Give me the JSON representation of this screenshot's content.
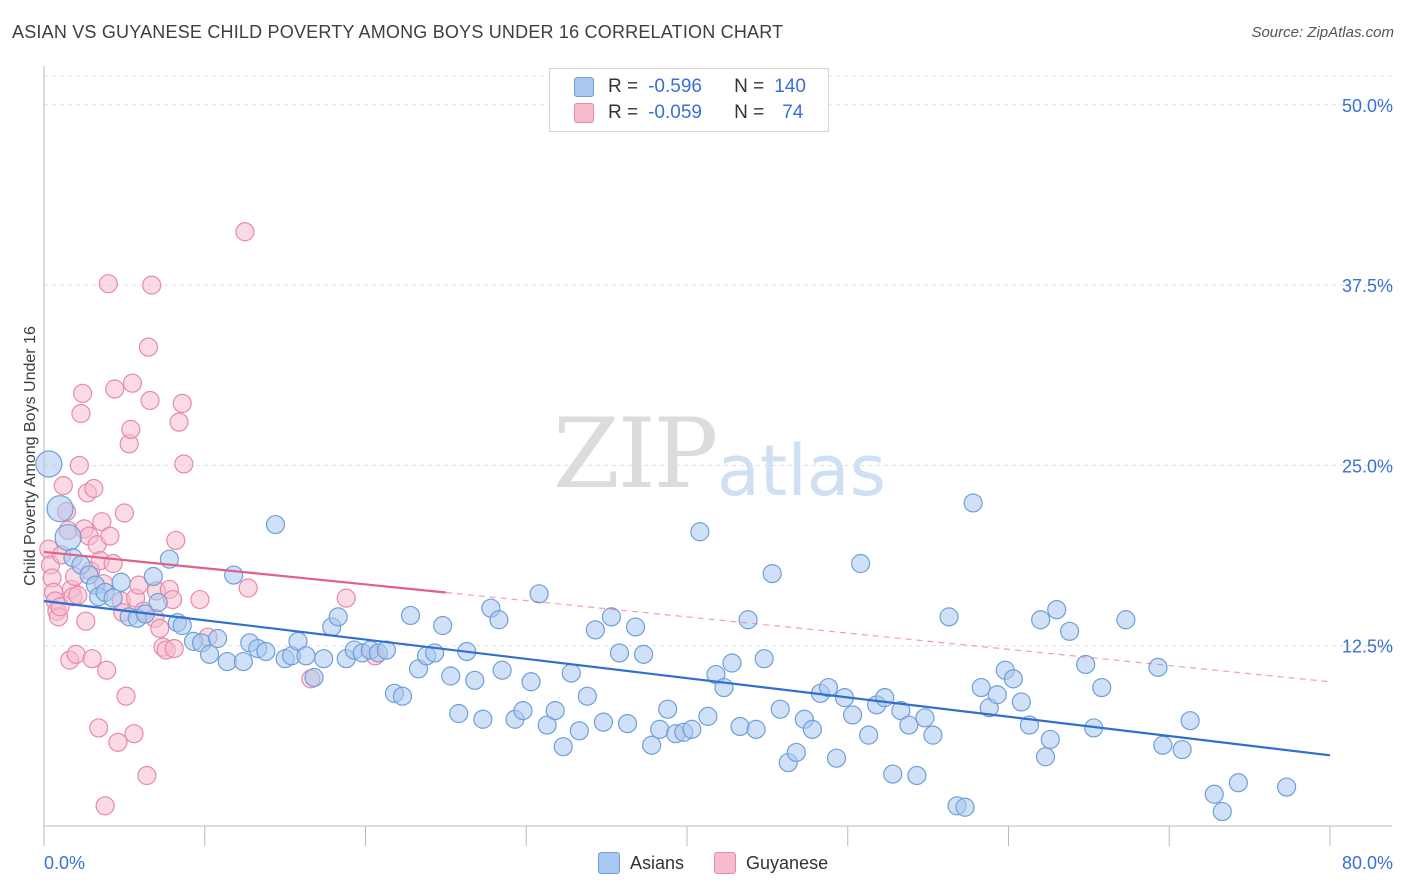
{
  "header": {
    "title": "ASIAN VS GUYANESE CHILD POVERTY AMONG BOYS UNDER 16 CORRELATION CHART",
    "source": "Source: ZipAtlas.com"
  },
  "legend": {
    "rows": [
      {
        "r_label": "R =",
        "r_value": "-0.596",
        "n_label": "N =",
        "n_value": "140"
      },
      {
        "r_label": "R =",
        "r_value": "-0.059",
        "n_label": "N =",
        "n_value": "74"
      }
    ],
    "bottom": [
      "Asians",
      "Guyanese"
    ]
  },
  "watermark": {
    "zip": "ZIP",
    "atlas": "atlas"
  },
  "colors": {
    "asian_fill": "#a9c8f0",
    "asian_stroke": "#6f9fd8",
    "asian_line": "#2f6fd0",
    "guyanese_fill": "#f6bccd",
    "guyanese_stroke": "#e88aa8",
    "guyanese_line": "#e0608a",
    "axis_text": "#3a6fd8",
    "grid": "#dedede"
  },
  "chart_data": {
    "type": "scatter",
    "title": "ASIAN VS GUYANESE CHILD POVERTY AMONG BOYS UNDER 16 CORRELATION CHART",
    "xlabel": "",
    "ylabel": "Child Poverty Among Boys Under 16",
    "xlim": [
      0,
      80
    ],
    "ylim": [
      0,
      52
    ],
    "x_tick_labels": [
      "0.0%",
      "80.0%"
    ],
    "y_tick_labels": [
      "12.5%",
      "25.0%",
      "37.5%",
      "50.0%"
    ],
    "y_ticks": [
      12.5,
      25.0,
      37.5,
      50.0
    ],
    "grid": true,
    "legend_position": "top-center",
    "series": [
      {
        "name": "Asians",
        "r": -0.596,
        "n": 140,
        "trend": {
          "x0": 0,
          "y0": 15.6,
          "x1": 80,
          "y1": 4.9,
          "solid_until": 80
        },
        "points": [
          [
            0.3,
            25.1
          ],
          [
            1.0,
            22.0
          ],
          [
            1.5,
            20.0
          ],
          [
            1.8,
            18.6
          ],
          [
            2.3,
            18.1
          ],
          [
            2.8,
            17.4
          ],
          [
            3.2,
            16.7
          ],
          [
            3.4,
            15.9
          ],
          [
            3.8,
            16.2
          ],
          [
            4.3,
            15.8
          ],
          [
            4.8,
            16.9
          ],
          [
            5.3,
            14.5
          ],
          [
            5.8,
            14.4
          ],
          [
            6.3,
            14.7
          ],
          [
            6.8,
            17.3
          ],
          [
            7.1,
            15.5
          ],
          [
            7.8,
            18.5
          ],
          [
            8.3,
            14.1
          ],
          [
            8.6,
            13.9
          ],
          [
            9.3,
            12.8
          ],
          [
            9.8,
            12.7
          ],
          [
            10.3,
            11.9
          ],
          [
            10.8,
            13.0
          ],
          [
            11.4,
            11.4
          ],
          [
            11.8,
            17.4
          ],
          [
            12.4,
            11.4
          ],
          [
            12.8,
            12.7
          ],
          [
            13.3,
            12.3
          ],
          [
            13.8,
            12.1
          ],
          [
            14.4,
            20.9
          ],
          [
            15.0,
            11.6
          ],
          [
            15.4,
            11.8
          ],
          [
            15.8,
            12.8
          ],
          [
            16.3,
            11.8
          ],
          [
            16.8,
            10.3
          ],
          [
            17.4,
            11.6
          ],
          [
            17.9,
            13.8
          ],
          [
            18.3,
            14.5
          ],
          [
            18.8,
            11.6
          ],
          [
            19.3,
            12.2
          ],
          [
            19.8,
            12.0
          ],
          [
            20.3,
            12.2
          ],
          [
            20.8,
            12.0
          ],
          [
            21.3,
            12.2
          ],
          [
            21.8,
            9.2
          ],
          [
            22.3,
            9.0
          ],
          [
            22.8,
            14.6
          ],
          [
            23.3,
            10.9
          ],
          [
            23.8,
            11.8
          ],
          [
            24.3,
            12.0
          ],
          [
            24.8,
            13.9
          ],
          [
            25.3,
            10.4
          ],
          [
            25.8,
            7.8
          ],
          [
            26.3,
            12.1
          ],
          [
            26.8,
            10.1
          ],
          [
            27.3,
            7.4
          ],
          [
            27.8,
            15.1
          ],
          [
            28.3,
            14.3
          ],
          [
            28.5,
            10.8
          ],
          [
            29.3,
            7.4
          ],
          [
            29.8,
            8.0
          ],
          [
            30.3,
            10.0
          ],
          [
            30.8,
            16.1
          ],
          [
            31.3,
            7.0
          ],
          [
            31.8,
            8.0
          ],
          [
            32.3,
            5.5
          ],
          [
            32.8,
            10.6
          ],
          [
            33.3,
            6.6
          ],
          [
            33.8,
            9.0
          ],
          [
            34.3,
            13.6
          ],
          [
            34.8,
            7.2
          ],
          [
            35.3,
            14.5
          ],
          [
            35.8,
            12.0
          ],
          [
            36.3,
            7.1
          ],
          [
            36.8,
            13.8
          ],
          [
            37.3,
            11.9
          ],
          [
            37.8,
            5.6
          ],
          [
            38.3,
            6.7
          ],
          [
            38.8,
            8.1
          ],
          [
            39.3,
            6.4
          ],
          [
            39.8,
            6.5
          ],
          [
            40.3,
            6.7
          ],
          [
            40.8,
            20.4
          ],
          [
            41.3,
            7.6
          ],
          [
            41.8,
            10.5
          ],
          [
            42.3,
            9.6
          ],
          [
            42.8,
            11.3
          ],
          [
            43.3,
            6.9
          ],
          [
            43.8,
            14.3
          ],
          [
            44.3,
            6.7
          ],
          [
            44.8,
            11.6
          ],
          [
            45.3,
            17.5
          ],
          [
            45.8,
            8.1
          ],
          [
            46.3,
            4.4
          ],
          [
            46.8,
            5.1
          ],
          [
            47.3,
            7.4
          ],
          [
            47.8,
            6.7
          ],
          [
            48.3,
            9.2
          ],
          [
            48.8,
            9.6
          ],
          [
            49.3,
            4.7
          ],
          [
            49.8,
            8.9
          ],
          [
            50.3,
            7.7
          ],
          [
            50.8,
            18.2
          ],
          [
            51.3,
            6.3
          ],
          [
            51.8,
            8.4
          ],
          [
            52.3,
            8.9
          ],
          [
            52.8,
            3.6
          ],
          [
            53.3,
            8.0
          ],
          [
            53.8,
            7.0
          ],
          [
            54.3,
            3.5
          ],
          [
            54.8,
            7.5
          ],
          [
            55.3,
            6.3
          ],
          [
            56.3,
            14.5
          ],
          [
            56.8,
            1.4
          ],
          [
            57.3,
            1.3
          ],
          [
            57.8,
            22.4
          ],
          [
            58.3,
            9.6
          ],
          [
            58.8,
            8.2
          ],
          [
            59.3,
            9.1
          ],
          [
            59.8,
            10.8
          ],
          [
            60.3,
            10.2
          ],
          [
            60.8,
            8.6
          ],
          [
            61.3,
            7.0
          ],
          [
            62.0,
            14.3
          ],
          [
            62.3,
            4.8
          ],
          [
            62.6,
            6.0
          ],
          [
            63.0,
            15.0
          ],
          [
            63.8,
            13.5
          ],
          [
            64.8,
            11.2
          ],
          [
            65.3,
            6.8
          ],
          [
            65.8,
            9.6
          ],
          [
            67.3,
            14.3
          ],
          [
            69.3,
            11.0
          ],
          [
            69.6,
            5.6
          ],
          [
            70.8,
            5.3
          ],
          [
            71.3,
            7.3
          ],
          [
            72.8,
            2.2
          ],
          [
            73.3,
            1.0
          ],
          [
            74.3,
            3.0
          ],
          [
            77.3,
            2.7
          ]
        ]
      },
      {
        "name": "Guyanese",
        "r": -0.059,
        "n": 74,
        "trend": {
          "x0": 0,
          "y0": 19.0,
          "x1": 80,
          "y1": 10.0,
          "solid_until": 25
        },
        "points": [
          [
            0.3,
            19.2
          ],
          [
            0.4,
            18.1
          ],
          [
            0.5,
            17.2
          ],
          [
            0.6,
            16.2
          ],
          [
            0.7,
            15.6
          ],
          [
            0.8,
            14.9
          ],
          [
            0.9,
            14.5
          ],
          [
            1.0,
            15.2
          ],
          [
            1.1,
            18.8
          ],
          [
            1.2,
            23.6
          ],
          [
            1.4,
            21.8
          ],
          [
            1.5,
            20.5
          ],
          [
            1.6,
            11.5
          ],
          [
            1.7,
            16.4
          ],
          [
            1.8,
            15.9
          ],
          [
            1.9,
            17.3
          ],
          [
            2.0,
            11.9
          ],
          [
            2.1,
            16.0
          ],
          [
            2.2,
            25.0
          ],
          [
            2.3,
            28.6
          ],
          [
            2.4,
            30.0
          ],
          [
            2.5,
            20.6
          ],
          [
            2.6,
            14.2
          ],
          [
            2.7,
            23.1
          ],
          [
            2.8,
            20.1
          ],
          [
            2.9,
            17.7
          ],
          [
            3.0,
            11.6
          ],
          [
            3.1,
            23.4
          ],
          [
            3.3,
            19.5
          ],
          [
            3.4,
            6.8
          ],
          [
            3.5,
            18.4
          ],
          [
            3.6,
            21.1
          ],
          [
            3.7,
            16.8
          ],
          [
            3.8,
            1.4
          ],
          [
            3.9,
            10.8
          ],
          [
            4.0,
            37.6
          ],
          [
            4.1,
            20.1
          ],
          [
            4.3,
            18.2
          ],
          [
            4.4,
            30.3
          ],
          [
            4.6,
            5.8
          ],
          [
            4.8,
            15.6
          ],
          [
            4.9,
            14.8
          ],
          [
            5.0,
            21.7
          ],
          [
            5.1,
            9.0
          ],
          [
            5.3,
            26.5
          ],
          [
            5.4,
            27.5
          ],
          [
            5.5,
            30.7
          ],
          [
            5.6,
            6.4
          ],
          [
            5.7,
            15.8
          ],
          [
            5.9,
            16.7
          ],
          [
            6.2,
            14.9
          ],
          [
            6.4,
            3.5
          ],
          [
            6.5,
            33.2
          ],
          [
            6.6,
            29.5
          ],
          [
            6.7,
            37.5
          ],
          [
            6.9,
            14.4
          ],
          [
            7.0,
            16.3
          ],
          [
            7.2,
            13.7
          ],
          [
            7.4,
            12.4
          ],
          [
            7.6,
            12.2
          ],
          [
            7.8,
            16.4
          ],
          [
            8.0,
            15.7
          ],
          [
            8.1,
            12.3
          ],
          [
            8.2,
            19.8
          ],
          [
            8.4,
            28.0
          ],
          [
            8.6,
            29.3
          ],
          [
            8.7,
            25.1
          ],
          [
            9.7,
            15.7
          ],
          [
            10.2,
            13.1
          ],
          [
            12.5,
            41.2
          ],
          [
            12.7,
            16.5
          ],
          [
            16.6,
            10.2
          ],
          [
            18.8,
            15.8
          ],
          [
            20.6,
            11.8
          ]
        ]
      }
    ]
  }
}
